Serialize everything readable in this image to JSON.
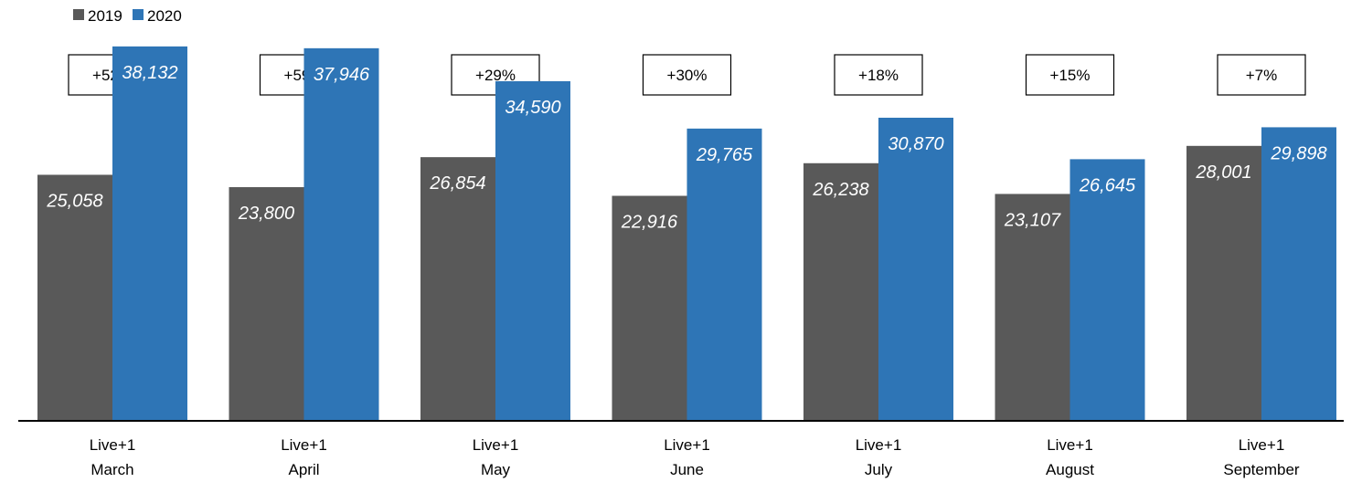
{
  "chart_data": {
    "type": "bar",
    "categories": [
      [
        "Live+1",
        "March"
      ],
      [
        "Live+1",
        "April"
      ],
      [
        "Live+1",
        "May"
      ],
      [
        "Live+1",
        "June"
      ],
      [
        "Live+1",
        "July"
      ],
      [
        "Live+1",
        "August"
      ],
      [
        "Live+1",
        "September"
      ]
    ],
    "series": [
      {
        "name": "2019",
        "color": "#595959",
        "values": [
          25058,
          23800,
          26854,
          22916,
          26238,
          23107,
          28001
        ]
      },
      {
        "name": "2020",
        "color": "#2e75b6",
        "values": [
          38132,
          37946,
          34590,
          29765,
          30870,
          26645,
          29898
        ]
      }
    ],
    "labels": [
      [
        "25,058",
        "23,800",
        "26,854",
        "22,916",
        "26,238",
        "23,107",
        "28,001"
      ],
      [
        "38,132",
        "37,946",
        "34,590",
        "29,765",
        "30,870",
        "26,645",
        "29,898"
      ]
    ],
    "annotations": [
      "+52%",
      "+59%",
      "+29%",
      "+30%",
      "+18%",
      "+15%",
      "+7%"
    ],
    "legend": "top-left",
    "ylim": [
      0,
      41000
    ],
    "grid": false,
    "title": "",
    "xlabel": "",
    "ylabel": ""
  }
}
